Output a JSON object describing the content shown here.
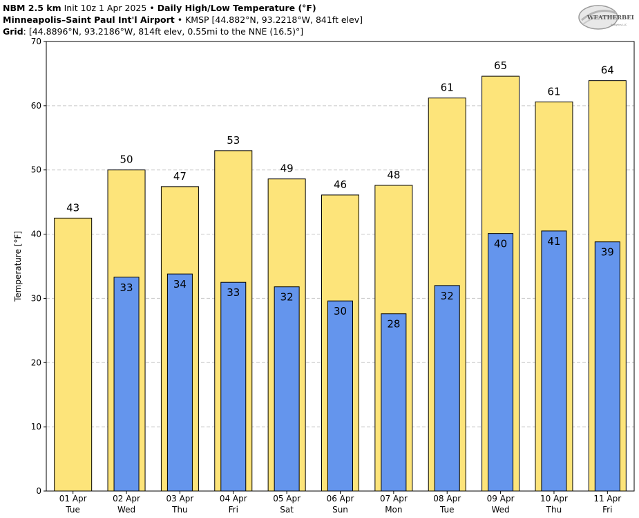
{
  "header": {
    "line1": {
      "model": "NBM 2.5 km",
      "init": "Init 10z 1 Apr 2025",
      "sep": "•",
      "title": "Daily High/Low Temperature (°F)"
    },
    "line2": {
      "station": "Minneapolis–Saint Paul Int'l Airport",
      "sep": "•",
      "details": "KMSP [44.882°N, 93.2218°W, 841ft elev]"
    },
    "line3": {
      "label": "Grid",
      "details": ": [44.8896°N, 93.2186°W, 814ft elev, 0.55mi to the NNE (16.5)°]"
    }
  },
  "logo": {
    "text": "WEATHERBELL",
    "subtext": "Analytics LLC"
  },
  "chart_data": {
    "type": "bar",
    "categories": [
      [
        "01 Apr",
        "Tue"
      ],
      [
        "02 Apr",
        "Wed"
      ],
      [
        "03 Apr",
        "Thu"
      ],
      [
        "04 Apr",
        "Fri"
      ],
      [
        "05 Apr",
        "Sat"
      ],
      [
        "06 Apr",
        "Sun"
      ],
      [
        "07 Apr",
        "Mon"
      ],
      [
        "08 Apr",
        "Tue"
      ],
      [
        "09 Apr",
        "Wed"
      ],
      [
        "10 Apr",
        "Thu"
      ],
      [
        "11 Apr",
        "Fri"
      ]
    ],
    "series": [
      {
        "color": "#fde47a",
        "values": [
          42.5,
          50.0,
          47.4,
          53.0,
          48.6,
          46.1,
          47.6,
          61.2,
          64.6,
          60.6,
          63.9
        ],
        "labels": [
          "43",
          "50",
          "47",
          "53",
          "49",
          "46",
          "48",
          "61",
          "65",
          "61",
          "64"
        ]
      },
      {
        "color": "#6495ed",
        "values": [
          null,
          33.3,
          33.8,
          32.5,
          31.8,
          29.6,
          27.6,
          32.0,
          40.1,
          40.5,
          38.8
        ],
        "labels": [
          null,
          "33",
          "34",
          "33",
          "32",
          "30",
          "28",
          "32",
          "40",
          "41",
          "39"
        ]
      }
    ],
    "ylabel": "Temperature [°F]",
    "ylim": [
      0,
      70
    ],
    "yticks": [
      0,
      10,
      20,
      30,
      40,
      50,
      60,
      70
    ],
    "grid": true
  }
}
